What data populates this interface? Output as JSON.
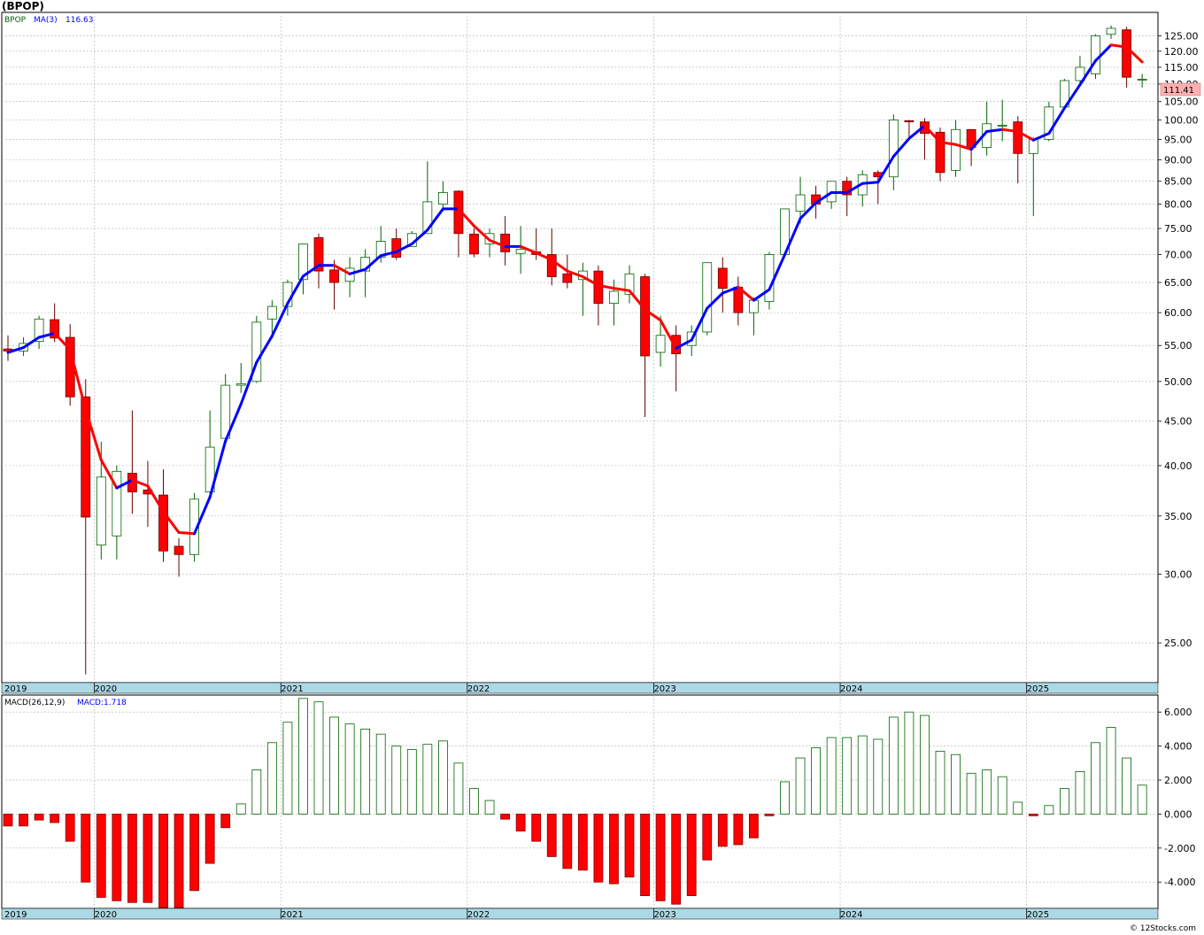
{
  "title": "(BPOP)",
  "copyright": "© 12Stocks.com",
  "price_badge": "111.41",
  "price_legend": {
    "symbol": "BPOP",
    "ma_label": "MA(3)",
    "ma_value": "116.63"
  },
  "macd_legend": {
    "label": "MACD(26,12,9)",
    "value_label": "MACD:1.718"
  },
  "years": [
    "2019",
    "2020",
    "2021",
    "2022",
    "2023",
    "2024",
    "2025"
  ],
  "colors": {
    "up_candle": "#006400",
    "down_candle_fill": "#ff0000",
    "ma_rising": "#0000ff",
    "ma_falling": "#ff0000",
    "axis_band": "#add8e6",
    "grid": "#b0b0b0",
    "badge_fill": "#ffb0b0"
  },
  "chart_data": [
    {
      "type": "candlestick",
      "title": "",
      "period": "monthly",
      "y_scale": "log",
      "ylim": [
        22.5,
        133
      ],
      "y_ticks": [
        25,
        30,
        35,
        40,
        45,
        50,
        55,
        60,
        65,
        70,
        75,
        80,
        85,
        90,
        95,
        100,
        105,
        110,
        115,
        120,
        125
      ],
      "y_tick_labels": [
        "25.00",
        "30.00",
        "35.00",
        "40.00",
        "45.00",
        "50.00",
        "55.00",
        "60.00",
        "65.00",
        "70.00",
        "75.00",
        "80.00",
        "85.00",
        "90.00",
        "95.00",
        "100.00",
        "105.00",
        "110.00",
        "115.00",
        "120.00",
        "125.00"
      ],
      "start_month": "2019-10",
      "ohlc": [
        [
          54.5,
          56.5,
          52.8,
          54.2
        ],
        [
          54.2,
          56.2,
          53.5,
          55.3
        ],
        [
          55.6,
          59.5,
          54.5,
          59.0
        ],
        [
          58.9,
          61.5,
          55.5,
          56.1
        ],
        [
          56.2,
          58.2,
          46.9,
          48.0
        ],
        [
          48.0,
          50.3,
          23.0,
          34.9
        ],
        [
          32.4,
          42.6,
          31.2,
          38.8
        ],
        [
          33.2,
          40.0,
          31.2,
          39.4
        ],
        [
          39.2,
          46.3,
          35.2,
          37.3
        ],
        [
          37.5,
          40.5,
          34.0,
          37.1
        ],
        [
          37.0,
          39.6,
          31.0,
          31.9
        ],
        [
          32.3,
          33.0,
          29.8,
          31.6
        ],
        [
          31.6,
          37.2,
          31.0,
          36.6
        ],
        [
          37.3,
          46.3,
          37.2,
          42.0
        ],
        [
          43.0,
          51.0,
          42.5,
          49.5
        ],
        [
          49.5,
          52.5,
          48.5,
          49.7
        ],
        [
          50.0,
          59.5,
          49.8,
          58.5
        ],
        [
          59.0,
          62.0,
          56.0,
          61.0
        ],
        [
          61.0,
          65.5,
          59.5,
          65.0
        ],
        [
          65.5,
          72.0,
          63.0,
          72.0
        ],
        [
          73.2,
          74.0,
          64.0,
          67.0
        ],
        [
          67.2,
          69.0,
          60.5,
          65.0
        ],
        [
          65.2,
          69.5,
          62.5,
          67.5
        ],
        [
          67.0,
          71.0,
          62.5,
          69.5
        ],
        [
          69.5,
          75.5,
          68.5,
          72.5
        ],
        [
          73.0,
          75.0,
          69.0,
          69.5
        ],
        [
          71.5,
          74.5,
          71.5,
          74.0
        ],
        [
          74.0,
          89.6,
          74.0,
          80.5
        ],
        [
          80.0,
          85.0,
          78.5,
          82.5
        ],
        [
          82.8,
          83.0,
          69.5,
          74.0
        ],
        [
          73.9,
          75.0,
          69.5,
          70.1
        ],
        [
          72.0,
          75.0,
          69.5,
          74.0
        ],
        [
          73.9,
          77.5,
          68.0,
          70.5
        ],
        [
          70.2,
          75.5,
          66.5,
          71.0
        ],
        [
          70.5,
          75.0,
          69.0,
          70.0
        ],
        [
          70.0,
          75.0,
          64.5,
          66.0
        ],
        [
          66.5,
          70.0,
          64.0,
          65.0
        ],
        [
          65.5,
          68.5,
          59.5,
          67.0
        ],
        [
          67.0,
          68.0,
          58.0,
          61.5
        ],
        [
          61.5,
          65.5,
          58.0,
          63.5
        ],
        [
          63.0,
          68.0,
          61.5,
          66.5
        ],
        [
          66.0,
          66.5,
          45.5,
          53.5
        ],
        [
          54.0,
          59.5,
          52.0,
          56.5
        ],
        [
          56.5,
          58.0,
          48.7,
          53.8
        ],
        [
          55.0,
          58.0,
          53.5,
          57.0
        ],
        [
          57.0,
          68.5,
          56.5,
          68.5
        ],
        [
          67.5,
          69.5,
          60.0,
          64.0
        ],
        [
          64.2,
          66.0,
          58.0,
          60.0
        ],
        [
          60.0,
          62.5,
          56.5,
          62.0
        ],
        [
          61.8,
          70.5,
          60.5,
          70.0
        ],
        [
          70.0,
          79.0,
          69.5,
          79.0
        ],
        [
          78.5,
          86.0,
          76.0,
          82.0
        ],
        [
          82.0,
          84.0,
          77.0,
          80.0
        ],
        [
          80.5,
          85.0,
          79.0,
          85.0
        ],
        [
          85.0,
          86.0,
          77.5,
          82.0
        ],
        [
          82.0,
          87.5,
          79.5,
          86.5
        ],
        [
          87.0,
          87.5,
          80.0,
          86.0
        ],
        [
          86.0,
          101.5,
          83.0,
          100.0
        ],
        [
          99.8,
          100.0,
          95.0,
          99.5
        ],
        [
          99.5,
          100.5,
          90.0,
          96.5
        ],
        [
          96.8,
          98.0,
          85.0,
          87.0
        ],
        [
          87.5,
          100.0,
          86.0,
          97.5
        ],
        [
          97.5,
          97.0,
          88.5,
          93.0
        ],
        [
          93.0,
          105.0,
          91.0,
          99.0
        ],
        [
          98.5,
          105.5,
          94.5,
          98.6
        ],
        [
          99.5,
          101.0,
          84.5,
          91.5
        ],
        [
          91.5,
          95.5,
          77.5,
          95.0
        ],
        [
          95.0,
          105.0,
          94.5,
          103.5
        ],
        [
          103.5,
          111.5,
          103.5,
          111.0
        ],
        [
          111.0,
          118.5,
          109.5,
          115.0
        ],
        [
          113.0,
          125.5,
          111.5,
          125.0
        ],
        [
          125.5,
          128.5,
          124.0,
          127.5
        ],
        [
          127.0,
          128.0,
          109.0,
          112.0
        ],
        [
          111.4,
          113.0,
          109.0,
          111.4
        ]
      ],
      "ma_period": 3,
      "ma_name": "MA(3)",
      "ma_values": [
        54.0,
        54.7,
        56.2,
        56.8,
        54.4,
        46.4,
        40.6,
        37.7,
        38.5,
        37.9,
        35.4,
        33.5,
        33.4,
        36.8,
        42.7,
        47.1,
        52.6,
        56.4,
        61.5,
        66.1,
        68.0,
        68.0,
        66.5,
        67.3,
        69.8,
        70.5,
        72.0,
        74.7,
        79.0,
        79.0,
        75.5,
        72.7,
        71.5,
        71.5,
        70.3,
        69.0,
        67.0,
        66.0,
        64.5,
        64.0,
        63.6,
        60.5,
        58.8,
        54.6,
        55.8,
        60.7,
        63.2,
        64.2,
        62.0,
        63.8,
        70.0,
        77.0,
        80.3,
        82.5,
        82.5,
        84.5,
        84.8,
        90.8,
        95.2,
        98.5,
        94.3,
        93.7,
        92.5,
        97.0,
        97.5,
        97.0,
        94.8,
        96.5,
        103.2,
        109.8,
        117.0,
        122.0,
        121.3,
        116.6
      ]
    },
    {
      "type": "bar",
      "title": "",
      "name": "MACD(26,12,9)",
      "ylim": [
        -5.55,
        7.0
      ],
      "y_ticks": [
        -4,
        -2,
        0,
        2,
        4,
        6
      ],
      "y_tick_labels": [
        "-4.000",
        "-2.000",
        "0.000",
        "2.000",
        "4.000",
        "6.000"
      ],
      "values": [
        -0.7,
        -0.7,
        -0.35,
        -0.5,
        -1.6,
        -4.0,
        -4.9,
        -5.1,
        -5.2,
        -5.2,
        -5.5,
        -5.5,
        -4.5,
        -2.9,
        -0.8,
        0.6,
        2.6,
        4.2,
        5.4,
        6.8,
        6.6,
        5.7,
        5.3,
        5.0,
        4.7,
        4.0,
        3.8,
        4.1,
        4.3,
        3.0,
        1.5,
        0.8,
        -0.3,
        -1.0,
        -1.6,
        -2.5,
        -3.2,
        -3.3,
        -4.0,
        -4.1,
        -3.7,
        -4.8,
        -5.1,
        -5.3,
        -4.8,
        -2.7,
        -1.9,
        -1.8,
        -1.4,
        -0.1,
        1.9,
        3.3,
        3.9,
        4.5,
        4.5,
        4.6,
        4.4,
        5.7,
        6.0,
        5.8,
        3.7,
        3.5,
        2.4,
        2.6,
        2.2,
        0.7,
        -0.1,
        0.5,
        1.5,
        2.5,
        4.2,
        5.1,
        3.3,
        1.7
      ]
    }
  ]
}
